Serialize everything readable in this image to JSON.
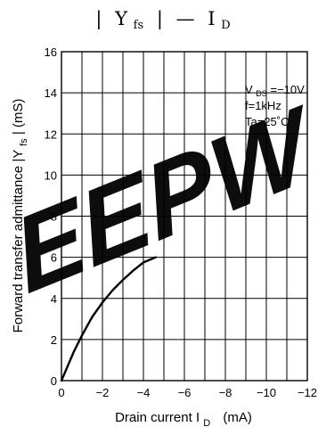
{
  "chart_data": {
    "type": "line",
    "title_parts": {
      "bar_left": "|",
      "y_symbol": "Y",
      "y_sub": "fs",
      "bar_right": "|",
      "dash": "—",
      "x_symbol": "I",
      "x_sub": "D"
    },
    "xlabel": {
      "text": "Drain current   I",
      "sub": "D",
      "unit": "(mA)"
    },
    "ylabel": {
      "pre": "Forward transfer admittance  |Y",
      "sub": "fs",
      "post": "|   (mS)"
    },
    "xlim": [
      0,
      -12
    ],
    "ylim": [
      0,
      16
    ],
    "grid": true,
    "x_ticks": [
      "0",
      "−2",
      "−4",
      "−6",
      "−8",
      "−10",
      "−12"
    ],
    "y_ticks": [
      "0",
      "2",
      "4",
      "6",
      "8",
      "10",
      "12",
      "14",
      "16"
    ],
    "x_tick_values": [
      0,
      -2,
      -4,
      -6,
      -8,
      -10,
      -12
    ],
    "y_tick_values": [
      0,
      2,
      4,
      6,
      8,
      10,
      12,
      14,
      16
    ],
    "conditions": {
      "line1_pre": "V",
      "line1_sub": "DS",
      "line1_post": "=−10V",
      "line2": "f=1kHz",
      "line3": "Ta=25˚C"
    },
    "series": [
      {
        "color": "#000000",
        "points": [
          [
            0,
            0
          ],
          [
            -0.3,
            0.7
          ],
          [
            -0.6,
            1.4
          ],
          [
            -1.0,
            2.2
          ],
          [
            -1.5,
            3.1
          ],
          [
            -2.0,
            3.8
          ],
          [
            -2.5,
            4.4
          ],
          [
            -3.0,
            4.9
          ],
          [
            -3.5,
            5.35
          ],
          [
            -4.0,
            5.75
          ],
          [
            -4.6,
            6.0
          ]
        ]
      }
    ],
    "watermark": "EEPW",
    "colors": {
      "watermark": "#e0241c"
    }
  }
}
